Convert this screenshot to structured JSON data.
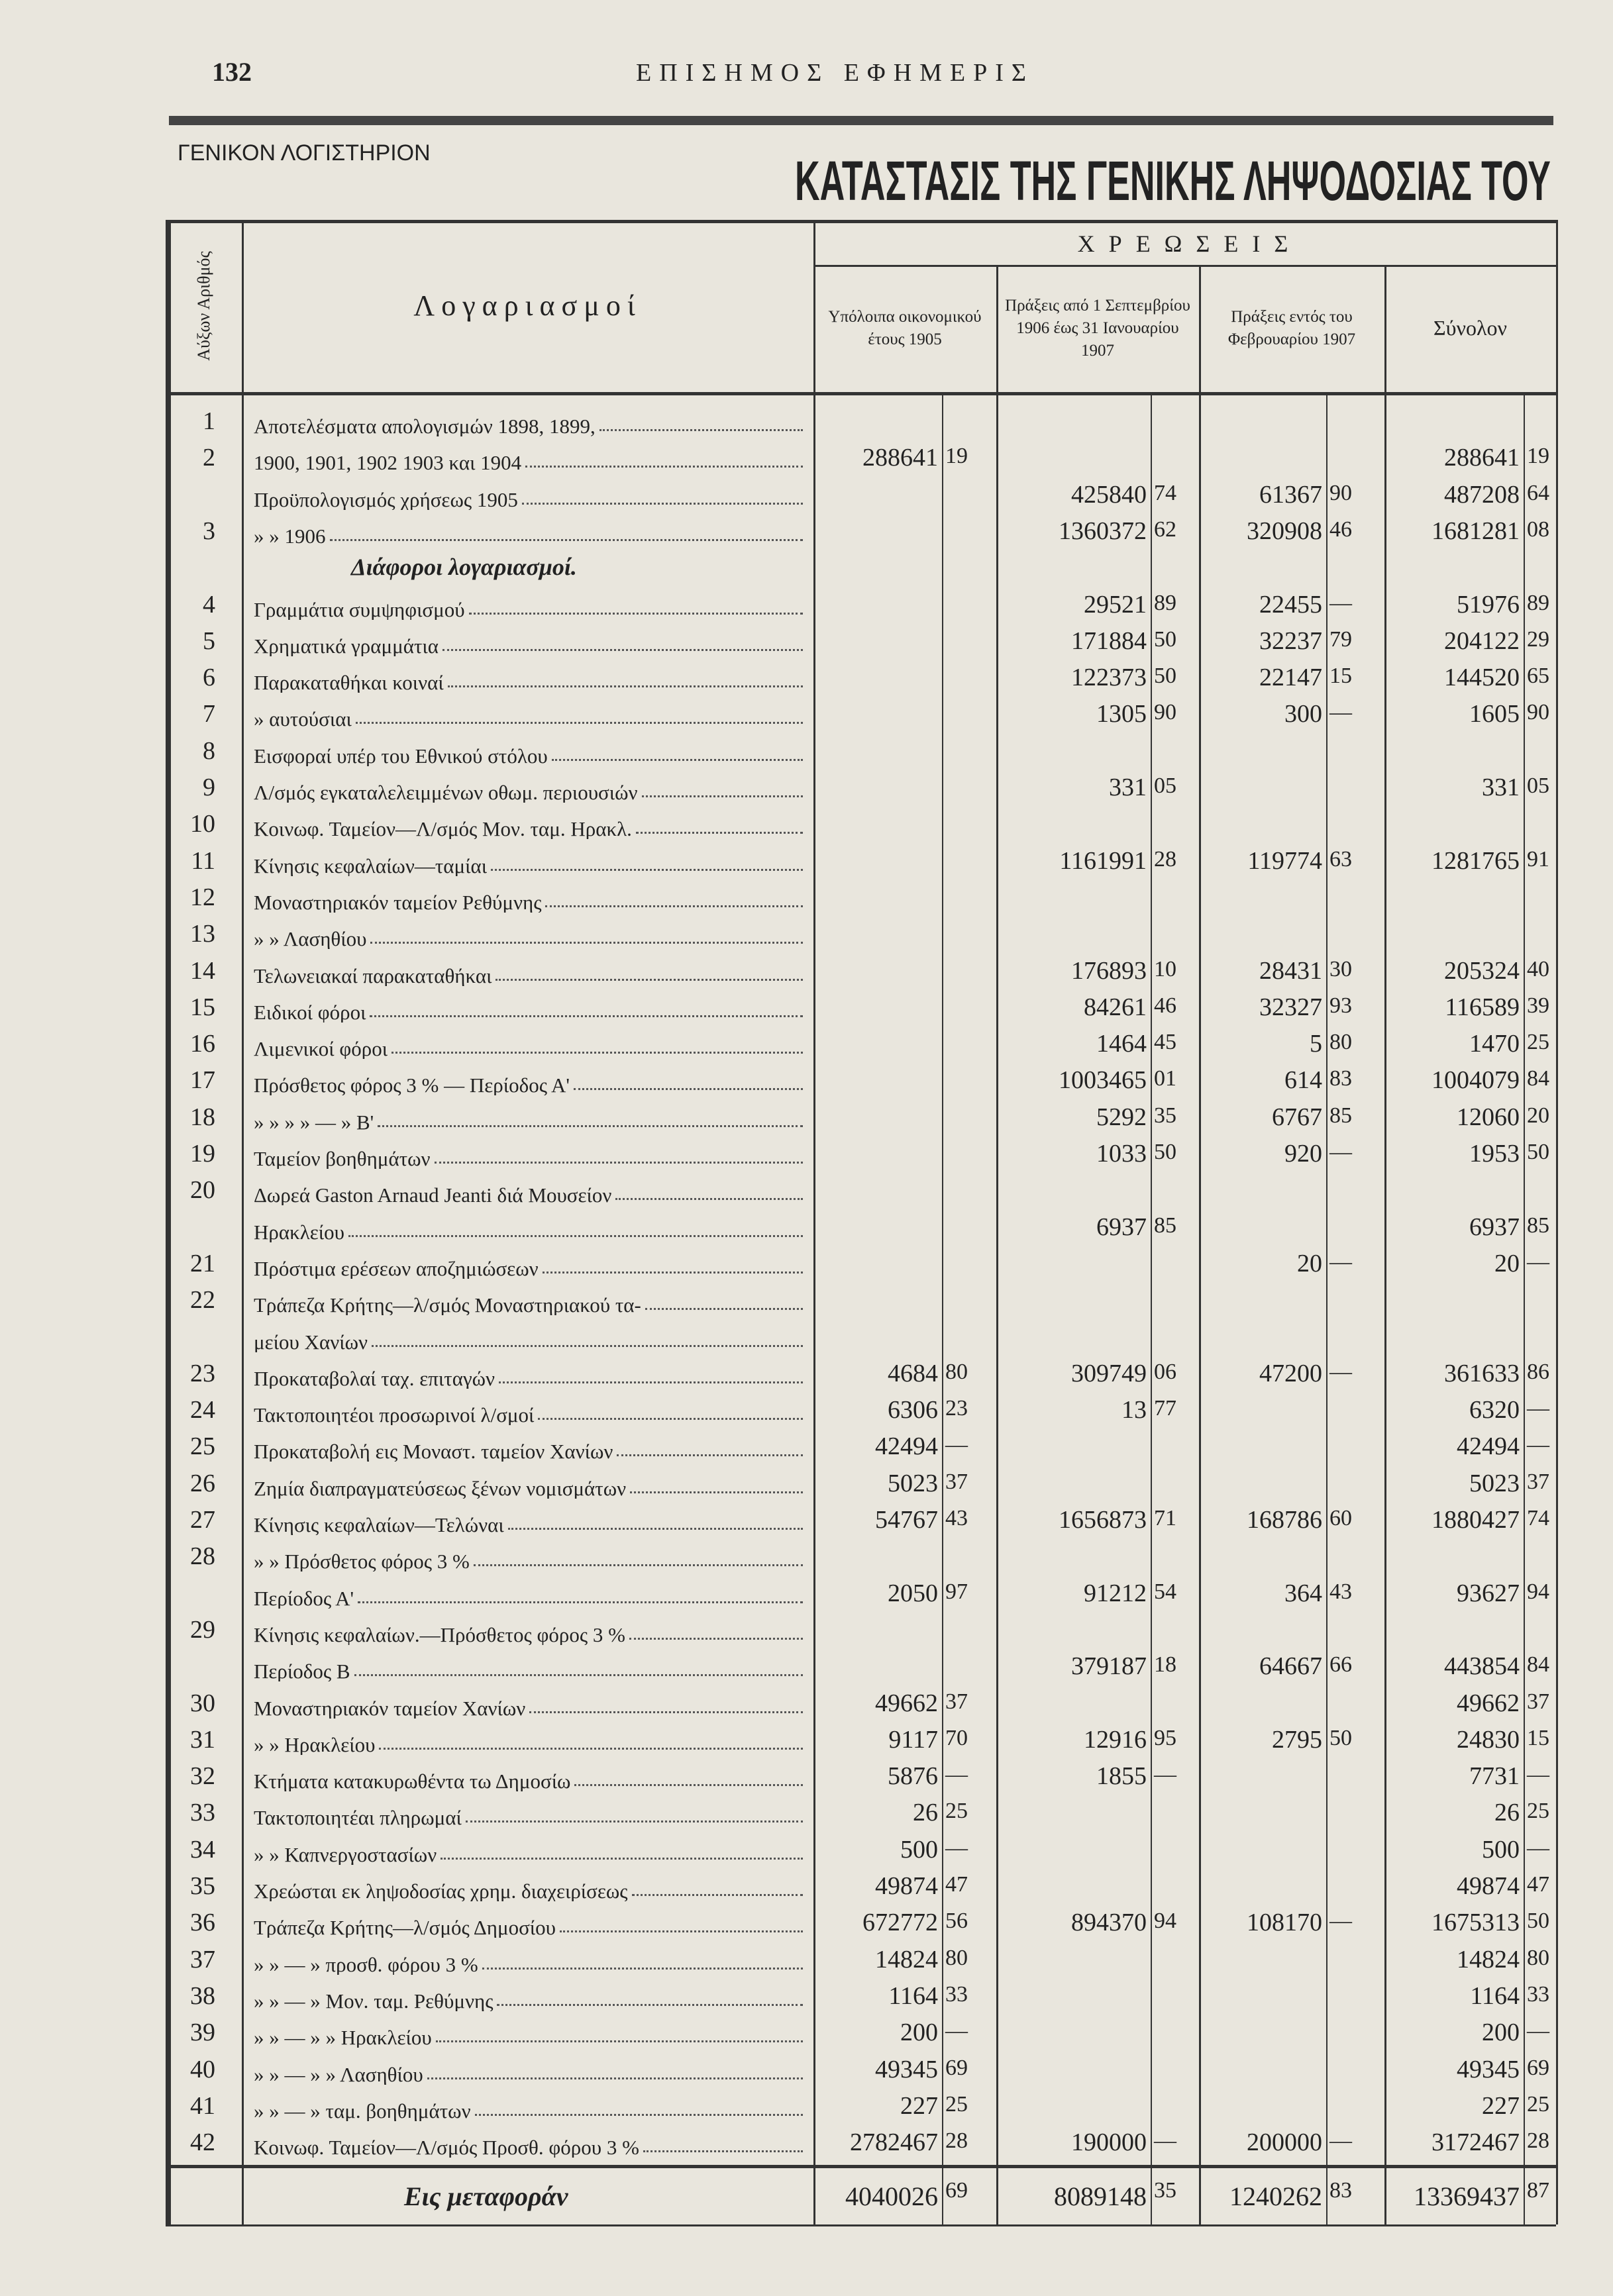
{
  "header": {
    "page_number": "132",
    "journal_title": "ΕΠΙΣΗΜΟΣ ΕΦΗΜΕΡΙΣ",
    "department": "ΓΕΝΙΚΟΝ ΛΟΓΙΣΤΗΡΙΟΝ",
    "title": "ΚΑΤΑΣΤΑΣΙΣ ΤΗΣ ΓΕΝΙΚΗΣ ΛΗΨΟΔΟΣΙΑΣ ΤΟΥ"
  },
  "table": {
    "group_header": "Χ Ρ Ε Ω Σ Ε Ι Σ",
    "columns": [
      "Αύξων Αριθμός",
      "Λογαριασμοί",
      "Υπόλοιπα οικονομικού έτους 1905",
      "Πράξεις από 1 Σεπτεμβρίου 1906 έως 31 Ιανουαρίου 1907",
      "Πράξεις εντός του Φεβρουαρίου 1907",
      "Σύνολον"
    ],
    "rows": [
      {
        "number": "1",
        "account": "Αποτελέσματα απολογισμών 1898, 1899,"
      },
      {
        "number": "2",
        "account": "1900, 1901, 1902 1903 και 1904",
        "values": [
          [
            "288641",
            "19"
          ],
          null,
          null,
          [
            "288641",
            "19"
          ]
        ]
      },
      {
        "account": "Προϋπολογισμός χρήσεως 1905",
        "values": [
          null,
          [
            "425840",
            "74"
          ],
          [
            "61367",
            "90"
          ],
          [
            "487208",
            "64"
          ]
        ]
      },
      {
        "number": "3",
        "account": "» » 1906",
        "values": [
          null,
          [
            "1360372",
            "62"
          ],
          [
            "320908",
            "46"
          ],
          [
            "1681281",
            "08"
          ]
        ]
      },
      {
        "heading": "Διάφοροι λογαριασμοί."
      },
      {
        "number": "4",
        "account": "Γραμμάτια συμψηφισμού",
        "values": [
          null,
          [
            "29521",
            "89"
          ],
          [
            "22455",
            "—"
          ],
          [
            "51976",
            "89"
          ]
        ]
      },
      {
        "number": "5",
        "account": "Χρηματικά γραμμάτια",
        "values": [
          null,
          [
            "171884",
            "50"
          ],
          [
            "32237",
            "79"
          ],
          [
            "204122",
            "29"
          ]
        ]
      },
      {
        "number": "6",
        "account": "Παρακαταθήκαι κοιναί",
        "values": [
          null,
          [
            "122373",
            "50"
          ],
          [
            "22147",
            "15"
          ],
          [
            "144520",
            "65"
          ]
        ]
      },
      {
        "number": "7",
        "account": "» αυτούσιαι",
        "values": [
          null,
          [
            "1305",
            "90"
          ],
          [
            "300",
            "—"
          ],
          [
            "1605",
            "90"
          ]
        ]
      },
      {
        "number": "8",
        "account": "Εισφοραί υπέρ του Εθνικού στόλου"
      },
      {
        "number": "9",
        "account": "Λ/σμός εγκαταλελειμμένων οθωμ. περιουσιών",
        "values": [
          null,
          [
            "331",
            "05"
          ],
          null,
          [
            "331",
            "05"
          ]
        ]
      },
      {
        "number": "10",
        "account": "Κοινωφ. Ταμείον—Λ/σμός Μον. ταμ. Ηρακλ."
      },
      {
        "number": "11",
        "account": "Κίνησις κεφαλαίων—ταμίαι",
        "values": [
          null,
          [
            "1161991",
            "28"
          ],
          [
            "119774",
            "63"
          ],
          [
            "1281765",
            "91"
          ]
        ]
      },
      {
        "number": "12",
        "account": "Μοναστηριακόν ταμείον Ρεθύμνης"
      },
      {
        "number": "13",
        "account": "» » Λασηθίου"
      },
      {
        "number": "14",
        "account": "Τελωνειακαί παρακαταθήκαι",
        "values": [
          null,
          [
            "176893",
            "10"
          ],
          [
            "28431",
            "30"
          ],
          [
            "205324",
            "40"
          ]
        ]
      },
      {
        "number": "15",
        "account": "Ειδικοί φόροι",
        "values": [
          null,
          [
            "84261",
            "46"
          ],
          [
            "32327",
            "93"
          ],
          [
            "116589",
            "39"
          ]
        ]
      },
      {
        "number": "16",
        "account": "Λιμενικοί φόροι",
        "values": [
          null,
          [
            "1464",
            "45"
          ],
          [
            "5",
            "80"
          ],
          [
            "1470",
            "25"
          ]
        ]
      },
      {
        "number": "17",
        "account": "Πρόσθετος φόρος 3 % — Περίοδος Α'",
        "values": [
          null,
          [
            "1003465",
            "01"
          ],
          [
            "614",
            "83"
          ],
          [
            "1004079",
            "84"
          ]
        ]
      },
      {
        "number": "18",
        "account": "» » » » — » Β'",
        "values": [
          null,
          [
            "5292",
            "35"
          ],
          [
            "6767",
            "85"
          ],
          [
            "12060",
            "20"
          ]
        ]
      },
      {
        "number": "19",
        "account": "Ταμείον βοηθημάτων",
        "values": [
          null,
          [
            "1033",
            "50"
          ],
          [
            "920",
            "—"
          ],
          [
            "1953",
            "50"
          ]
        ]
      },
      {
        "number": "20",
        "account": "Δωρεά Gaston Arnaud Jeanti διά Μουσείον"
      },
      {
        "account": "Ηρακλείου",
        "values": [
          null,
          [
            "6937",
            "85"
          ],
          null,
          [
            "6937",
            "85"
          ]
        ]
      },
      {
        "number": "21",
        "account": "Πρόστιμα ερέσεων αποζημιώσεων",
        "values": [
          null,
          null,
          [
            "20",
            "—"
          ],
          [
            "20",
            "—"
          ]
        ]
      },
      {
        "number": "22",
        "account": "Τράπεζα Κρήτης—λ/σμός Μοναστηριακού τα-"
      },
      {
        "account": "μείου Χανίων"
      },
      {
        "number": "23",
        "account": "Προκαταβολαί ταχ. επιταγών",
        "values": [
          [
            "4684",
            "80"
          ],
          [
            "309749",
            "06"
          ],
          [
            "47200",
            "—"
          ],
          [
            "361633",
            "86"
          ]
        ]
      },
      {
        "number": "24",
        "account": "Τακτοποιητέοι προσωρινοί λ/σμοί",
        "values": [
          [
            "6306",
            "23"
          ],
          [
            "13",
            "77"
          ],
          null,
          [
            "6320",
            "—"
          ]
        ]
      },
      {
        "number": "25",
        "account": "Προκαταβολή εις Μοναστ. ταμείον Χανίων",
        "values": [
          [
            "42494",
            "—"
          ],
          null,
          null,
          [
            "42494",
            "—"
          ]
        ]
      },
      {
        "number": "26",
        "account": "Ζημία διαπραγματεύσεως ξένων νομισμάτων",
        "values": [
          [
            "5023",
            "37"
          ],
          null,
          null,
          [
            "5023",
            "37"
          ]
        ]
      },
      {
        "number": "27",
        "account": "Κίνησις κεφαλαίων—Τελώναι",
        "values": [
          [
            "54767",
            "43"
          ],
          [
            "1656873",
            "71"
          ],
          [
            "168786",
            "60"
          ],
          [
            "1880427",
            "74"
          ]
        ]
      },
      {
        "number": "28",
        "account": "» » Πρόσθετος φόρος 3 %"
      },
      {
        "account": "Περίοδος Α'",
        "values": [
          [
            "2050",
            "97"
          ],
          [
            "91212",
            "54"
          ],
          [
            "364",
            "43"
          ],
          [
            "93627",
            "94"
          ]
        ]
      },
      {
        "number": "29",
        "account": "Κίνησις κεφαλαίων.—Πρόσθετος φόρος 3 %"
      },
      {
        "account": "Περίοδος Β",
        "values": [
          null,
          [
            "379187",
            "18"
          ],
          [
            "64667",
            "66"
          ],
          [
            "443854",
            "84"
          ]
        ]
      },
      {
        "number": "30",
        "account": "Μοναστηριακόν ταμείον Χανίων",
        "values": [
          [
            "49662",
            "37"
          ],
          null,
          null,
          [
            "49662",
            "37"
          ]
        ]
      },
      {
        "number": "31",
        "account": "» » Ηρακλείου",
        "values": [
          [
            "9117",
            "70"
          ],
          [
            "12916",
            "95"
          ],
          [
            "2795",
            "50"
          ],
          [
            "24830",
            "15"
          ]
        ]
      },
      {
        "number": "32",
        "account": "Κτήματα κατακυρωθέντα τω Δημοσίω",
        "values": [
          [
            "5876",
            "—"
          ],
          [
            "1855",
            "—"
          ],
          null,
          [
            "7731",
            "—"
          ]
        ]
      },
      {
        "number": "33",
        "account": "Τακτοποιητέαι πληρωμαί",
        "values": [
          [
            "26",
            "25"
          ],
          null,
          null,
          [
            "26",
            "25"
          ]
        ]
      },
      {
        "number": "34",
        "account": "» » Καπνεργοστασίων",
        "values": [
          [
            "500",
            "—"
          ],
          null,
          null,
          [
            "500",
            "—"
          ]
        ]
      },
      {
        "number": "35",
        "account": "Χρεώσται εκ ληψοδοσίας χρημ. διαχειρίσεως",
        "values": [
          [
            "49874",
            "47"
          ],
          null,
          null,
          [
            "49874",
            "47"
          ]
        ]
      },
      {
        "number": "36",
        "account": "Τράπεζα Κρήτης—λ/σμός Δημοσίου",
        "values": [
          [
            "672772",
            "56"
          ],
          [
            "894370",
            "94"
          ],
          [
            "108170",
            "—"
          ],
          [
            "1675313",
            "50"
          ]
        ]
      },
      {
        "number": "37",
        "account": "» » — » προσθ. φόρου 3 %",
        "values": [
          [
            "14824",
            "80"
          ],
          null,
          null,
          [
            "14824",
            "80"
          ]
        ]
      },
      {
        "number": "38",
        "account": "» » — » Μον. ταμ. Ρεθύμνης",
        "values": [
          [
            "1164",
            "33"
          ],
          null,
          null,
          [
            "1164",
            "33"
          ]
        ]
      },
      {
        "number": "39",
        "account": "» » — » » Ηρακλείου",
        "values": [
          [
            "200",
            "—"
          ],
          null,
          null,
          [
            "200",
            "—"
          ]
        ]
      },
      {
        "number": "40",
        "account": "» » — » » Λασηθίου",
        "values": [
          [
            "49345",
            "69"
          ],
          null,
          null,
          [
            "49345",
            "69"
          ]
        ]
      },
      {
        "number": "41",
        "account": "» » — » ταμ. βοηθημάτων",
        "values": [
          [
            "227",
            "25"
          ],
          null,
          null,
          [
            "227",
            "25"
          ]
        ]
      },
      {
        "number": "42",
        "account": "Κοινωφ. Ταμείον—Λ/σμός Προσθ. φόρου 3 %",
        "values": [
          [
            "2782467",
            "28"
          ],
          [
            "190000",
            "—"
          ],
          [
            "200000",
            "—"
          ],
          [
            "3172467",
            "28"
          ]
        ]
      }
    ],
    "total": {
      "label": "Εις μεταφοράν",
      "values": [
        [
          "4040026",
          "69"
        ],
        [
          "8089148",
          "35"
        ],
        [
          "1240262",
          "83"
        ],
        [
          "13369437",
          "87"
        ]
      ]
    }
  }
}
